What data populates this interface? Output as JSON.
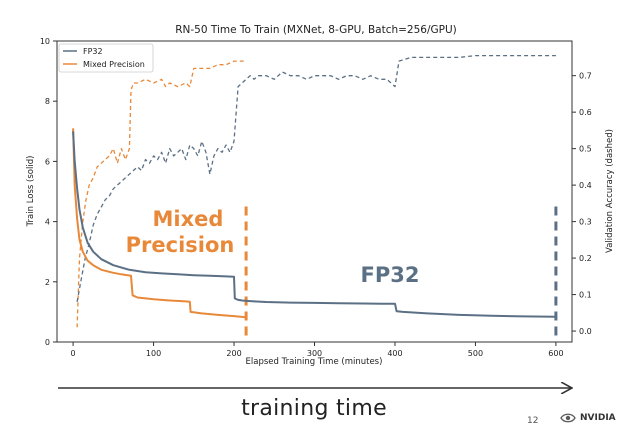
{
  "chart_data": {
    "type": "line",
    "title": "RN-50 Time To Train (MXNet, 8-GPU, Batch=256/GPU)",
    "xlabel": "Elapsed Training Time (minutes)",
    "ylabel": "Train Loss (solid)",
    "y2label": "Validation Accuracy (dashed)",
    "xlim": [
      -20,
      620
    ],
    "ylim": [
      0,
      10
    ],
    "y2lim": [
      -0.03,
      0.795
    ],
    "x_ticks": [
      0,
      100,
      200,
      300,
      400,
      500,
      600
    ],
    "y_ticks": [
      0,
      2,
      4,
      6,
      8,
      10
    ],
    "y2_ticks": [
      0.0,
      0.1,
      0.2,
      0.3,
      0.4,
      0.5,
      0.6,
      0.7
    ],
    "y2_tick_labels": [
      "0.0",
      "0.1",
      "0.2",
      "0.3",
      "0.4",
      "0.5",
      "0.6",
      "0.7"
    ],
    "legend": {
      "placement": "top-left",
      "entries": [
        "FP32",
        "Mixed Precision"
      ]
    },
    "grid": false,
    "colors": {
      "fp32": "#5b7085",
      "mixed": "#e8893a"
    },
    "annotations": {
      "mixed_label_line1": "Mixed",
      "mixed_label_line2": "Precision",
      "fp32_label": "FP32"
    },
    "series": [
      {
        "name": "FP32",
        "metric": "train_loss",
        "style": "solid",
        "x": [
          0,
          2,
          5,
          8,
          12,
          18,
          25,
          35,
          50,
          70,
          90,
          110,
          130,
          150,
          170,
          190,
          200,
          201,
          205,
          210,
          220,
          240,
          270,
          300,
          330,
          360,
          390,
          400,
          402,
          410,
          440,
          480,
          520,
          560,
          600
        ],
        "values": [
          7.0,
          6.0,
          5.1,
          4.4,
          3.8,
          3.3,
          3.0,
          2.75,
          2.55,
          2.4,
          2.32,
          2.28,
          2.25,
          2.22,
          2.2,
          2.18,
          2.17,
          1.45,
          1.4,
          1.38,
          1.36,
          1.33,
          1.31,
          1.3,
          1.29,
          1.28,
          1.27,
          1.27,
          1.02,
          1.0,
          0.95,
          0.9,
          0.87,
          0.85,
          0.84
        ]
      },
      {
        "name": "Mixed Precision",
        "metric": "train_loss",
        "style": "solid",
        "x": [
          0,
          2,
          5,
          8,
          12,
          18,
          25,
          35,
          50,
          60,
          72,
          74,
          80,
          100,
          120,
          140,
          145,
          146,
          160,
          180,
          200,
          215
        ],
        "values": [
          7.1,
          5.2,
          4.1,
          3.4,
          3.0,
          2.7,
          2.55,
          2.4,
          2.3,
          2.25,
          2.2,
          1.55,
          1.48,
          1.42,
          1.38,
          1.35,
          1.34,
          1.0,
          0.95,
          0.9,
          0.86,
          0.82
        ]
      },
      {
        "name": "FP32",
        "metric": "validation_accuracy",
        "style": "dashed",
        "x": [
          5,
          10,
          15,
          20,
          25,
          30,
          35,
          40,
          45,
          50,
          55,
          60,
          65,
          70,
          75,
          80,
          85,
          90,
          95,
          100,
          105,
          110,
          115,
          120,
          125,
          130,
          135,
          140,
          145,
          150,
          155,
          160,
          165,
          170,
          175,
          180,
          185,
          190,
          195,
          200,
          205,
          210,
          215,
          220,
          225,
          230,
          240,
          250,
          260,
          270,
          280,
          290,
          300,
          310,
          320,
          330,
          340,
          350,
          360,
          370,
          380,
          390,
          400,
          405,
          420,
          440,
          460,
          480,
          500,
          520,
          540,
          560,
          580,
          600
        ],
        "values": [
          0.08,
          0.14,
          0.2,
          0.24,
          0.29,
          0.32,
          0.34,
          0.36,
          0.37,
          0.39,
          0.4,
          0.41,
          0.42,
          0.43,
          0.44,
          0.45,
          0.44,
          0.47,
          0.46,
          0.48,
          0.47,
          0.49,
          0.46,
          0.5,
          0.48,
          0.49,
          0.5,
          0.47,
          0.51,
          0.5,
          0.48,
          0.52,
          0.49,
          0.43,
          0.48,
          0.5,
          0.49,
          0.51,
          0.49,
          0.52,
          0.67,
          0.68,
          0.69,
          0.7,
          0.69,
          0.7,
          0.7,
          0.69,
          0.71,
          0.7,
          0.7,
          0.69,
          0.7,
          0.7,
          0.7,
          0.69,
          0.7,
          0.7,
          0.69,
          0.7,
          0.69,
          0.69,
          0.67,
          0.74,
          0.75,
          0.75,
          0.75,
          0.75,
          0.755,
          0.755,
          0.755,
          0.755,
          0.755,
          0.755
        ]
      },
      {
        "name": "Mixed Precision",
        "metric": "validation_accuracy",
        "style": "dashed",
        "x": [
          5,
          8,
          12,
          16,
          20,
          25,
          30,
          35,
          40,
          45,
          50,
          55,
          60,
          65,
          70,
          72,
          75,
          80,
          90,
          100,
          110,
          115,
          120,
          130,
          140,
          145,
          150,
          160,
          170,
          180,
          190,
          200,
          210,
          215
        ],
        "values": [
          0.01,
          0.2,
          0.3,
          0.36,
          0.4,
          0.42,
          0.45,
          0.46,
          0.47,
          0.48,
          0.5,
          0.46,
          0.5,
          0.47,
          0.5,
          0.66,
          0.68,
          0.68,
          0.69,
          0.68,
          0.69,
          0.67,
          0.68,
          0.67,
          0.68,
          0.67,
          0.72,
          0.72,
          0.72,
          0.73,
          0.73,
          0.74,
          0.74,
          0.74
        ]
      }
    ]
  },
  "footer": {
    "bottom_label": "training time",
    "page_number": "12",
    "logo_text": "NVIDIA"
  }
}
